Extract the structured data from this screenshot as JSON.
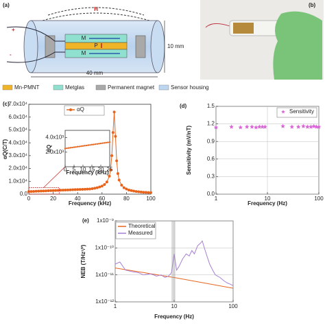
{
  "diagram": {
    "panel": "(a)",
    "field": "H",
    "plus": "+",
    "minus": "-",
    "layers": [
      "M",
      "P",
      "M"
    ],
    "height": "10 mm",
    "length": "40 mm",
    "legend": [
      {
        "label": "Mn-PMNT",
        "color": "#f0b429"
      },
      {
        "label": "Metglas",
        "color": "#8fe0cf"
      },
      {
        "label": "Permanent magnet",
        "color": "#a9a9a9"
      },
      {
        "label": "Sensor housing",
        "color": "#bcd6f0"
      }
    ]
  },
  "photo": {
    "panel": "(b)"
  },
  "chart_data": [
    {
      "type": "line",
      "panel": "(c)",
      "xlabel": "Frequency (kHz)",
      "ylabel": "αQ(C/T)",
      "legend": "upper left",
      "x": [
        0,
        2,
        4,
        6,
        8,
        10,
        12,
        14,
        16,
        18,
        20,
        22,
        24,
        26,
        28,
        30,
        32,
        34,
        36,
        38,
        40,
        42,
        44,
        46,
        48,
        50,
        52,
        54,
        56,
        58,
        60,
        62,
        64,
        66,
        67,
        68,
        69,
        70,
        71,
        72,
        73,
        74,
        76,
        78,
        80,
        82,
        84,
        86,
        88,
        90,
        92,
        94,
        96,
        98,
        100
      ],
      "series": [
        {
          "name": "αQ",
          "color": "#e8641c",
          "marker": "circle",
          "values": [
            2000,
            2080,
            2160,
            2240,
            2320,
            2400,
            2480,
            2560,
            2640,
            2720,
            2800,
            2880,
            2960,
            3040,
            3120,
            3200,
            3280,
            3360,
            3440,
            3520,
            3600,
            3680,
            3760,
            3840,
            3920,
            4000,
            4300,
            4600,
            5000,
            5600,
            6300,
            7500,
            9500,
            14000,
            19000,
            30000,
            48000,
            64000,
            45000,
            26000,
            16000,
            11000,
            7000,
            5000,
            4000,
            3200,
            2800,
            2400,
            2100,
            1900,
            1700,
            1500,
            1400,
            1300,
            1200
          ]
        }
      ],
      "xlim": [
        0,
        100
      ],
      "xticks": [
        0,
        20,
        40,
        60,
        80,
        100
      ],
      "ylim": [
        0,
        70000
      ],
      "yticks": [
        {
          "value": 0,
          "label": "0.0"
        },
        {
          "value": 10000,
          "label": "1.0x10⁴"
        },
        {
          "value": 20000,
          "label": "2.0x10⁴"
        },
        {
          "value": 30000,
          "label": "3.0x10⁴"
        },
        {
          "value": 40000,
          "label": "4.0x10⁴"
        },
        {
          "value": 50000,
          "label": "5.0x10⁴"
        },
        {
          "value": 60000,
          "label": "6.0x10⁴"
        },
        {
          "value": 70000,
          "label": "7.0x10⁴"
        }
      ],
      "grid": false
    },
    {
      "type": "line",
      "xlabel": "Frequency (kHz)",
      "ylabel": "αQ",
      "x": [
        0,
        1,
        2,
        3,
        4,
        5,
        6,
        7,
        8,
        9,
        10,
        11,
        12,
        13,
        14,
        15,
        16,
        17,
        18,
        19,
        20,
        21,
        22,
        23,
        24,
        25
      ],
      "series": [
        {
          "color": "#e8641c",
          "marker": "circle",
          "values": [
            2500,
            2540,
            2570,
            2610,
            2640,
            2680,
            2710,
            2750,
            2780,
            2820,
            2850,
            2890,
            2920,
            2960,
            2990,
            3030,
            3060,
            3100,
            3130,
            3170,
            3200,
            3240,
            3270,
            3310,
            3340,
            3380
          ]
        }
      ],
      "xlim": [
        0,
        25
      ],
      "xticks": [
        0,
        5,
        10,
        15,
        20,
        25
      ],
      "ylim": [
        0,
        5000
      ],
      "yticks": [
        {
          "value": 2000,
          "label": "2.0x10³"
        },
        {
          "value": 4000,
          "label": "4.0x10³"
        }
      ],
      "grid": false
    },
    {
      "type": "scatter",
      "panel": "(d)",
      "xlabel": "Frequency (Hz)",
      "ylabel": "Sensitivity (mV/nT)",
      "legend": "upper right",
      "xlog": true,
      "x": [
        1,
        2,
        3,
        4,
        5,
        6,
        7,
        8,
        9,
        20,
        30,
        40,
        50,
        60,
        70,
        80,
        90,
        100
      ],
      "series": [
        {
          "name": "Sensitivity",
          "color": "#d966d6",
          "marker": "star",
          "values": [
            1.14,
            1.15,
            1.14,
            1.15,
            1.15,
            1.14,
            1.15,
            1.15,
            1.15,
            1.16,
            1.15,
            1.15,
            1.16,
            1.15,
            1.15,
            1.16,
            1.15,
            1.15
          ]
        }
      ],
      "xlim": [
        1,
        100
      ],
      "xticks": [
        1,
        10,
        100
      ],
      "ylim": [
        0,
        1.5
      ],
      "yticks": [
        {
          "value": 0,
          "label": "0.0"
        },
        0.3,
        0.6,
        0.9,
        1.2,
        1.5
      ],
      "grid": true
    },
    {
      "type": "line",
      "panel": "(e)",
      "xlabel": "Frequency (Hz)",
      "ylabel": "NEB (T/Hz¹/²)",
      "legend": "upper left",
      "xlog": true,
      "ylog": true,
      "series": [
        {
          "name": "Theoretical",
          "color": "#e8641c",
          "x": [
            1,
            10,
            100
          ],
          "values": [
            1.8e-11,
            8e-12,
            3.2e-12
          ]
        },
        {
          "name": "Measured",
          "color": "#a77fd6",
          "x": [
            1,
            1.2,
            1.5,
            2,
            2.5,
            3,
            4,
            5,
            6,
            7,
            8,
            9,
            10,
            11,
            12,
            14,
            16,
            18,
            20,
            22,
            25,
            28,
            30,
            33,
            36,
            40,
            45,
            50,
            60,
            70,
            80,
            90,
            100
          ],
          "values": [
            2.5e-11,
            3e-11,
            1.5e-11,
            1.3e-11,
            1.2e-11,
            1e-11,
            1.1e-11,
            9e-12,
            1e-11,
            8e-12,
            9e-12,
            1.2e-11,
            6e-11,
            1.5e-11,
            2e-11,
            4e-11,
            6e-11,
            5e-11,
            8e-11,
            6e-11,
            1.2e-10,
            1.5e-10,
            1.8e-10,
            9e-11,
            5e-11,
            2.5e-11,
            1.5e-11,
            1e-11,
            8e-12,
            6e-12,
            5e-12,
            4.5e-12,
            4e-12
          ]
        }
      ],
      "xlim": [
        1,
        100
      ],
      "xticks": [
        1,
        10,
        100
      ],
      "ylim": [
        1e-12,
        1e-09
      ],
      "yticks": [
        {
          "value": 1e-12,
          "label": "1x10⁻¹²"
        },
        {
          "value": 1e-11,
          "label": "1x10⁻¹¹"
        },
        {
          "value": 1e-10,
          "label": "1x10⁻¹⁰"
        },
        {
          "value": 1e-09,
          "label": "1x10⁻⁹"
        }
      ],
      "grid": true
    }
  ]
}
